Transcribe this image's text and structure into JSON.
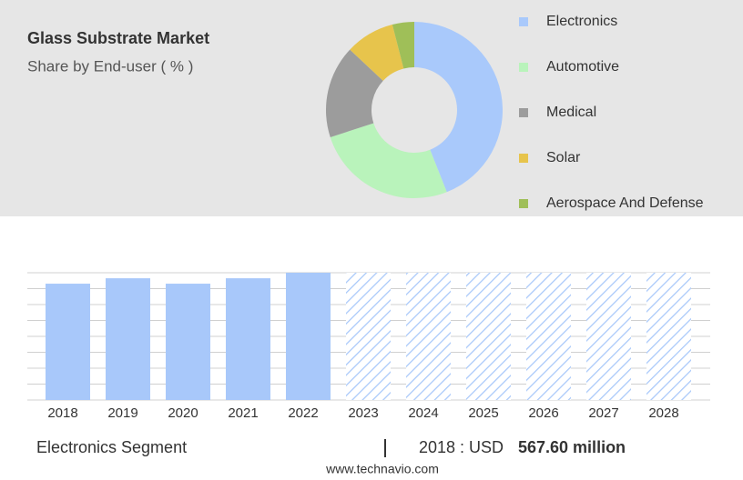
{
  "chart_data": [
    {
      "type": "pie",
      "donut": true,
      "title": "Glass Substrate Market",
      "subtitle": "Share by End-user ( % )",
      "legend": "right",
      "categories": [
        "Electronics",
        "Automotive",
        "Medical",
        "Solar",
        "Aerospace And Defense"
      ],
      "values": [
        44,
        26,
        17,
        9,
        4
      ],
      "colors": [
        "#a9c9fb",
        "#b9f3bb",
        "#9c9c9c",
        "#e7c44c",
        "#9fbf58"
      ]
    },
    {
      "type": "bar",
      "color": "#a8c8fa",
      "categories": [
        "2018",
        "2019",
        "2020",
        "2021",
        "2022",
        "2023",
        "2024",
        "2025",
        "2026",
        "2027",
        "2028"
      ],
      "values": [
        567.6,
        594,
        567.6,
        594,
        621,
        null,
        null,
        null,
        null,
        null,
        null
      ],
      "ylim": [
        0,
        621
      ],
      "grid": true
    }
  ],
  "footer": {
    "segment": "Electronics Segment",
    "year_label": "2018 : USD",
    "value_label": "567.60 million",
    "source": "www.technavio.com"
  }
}
